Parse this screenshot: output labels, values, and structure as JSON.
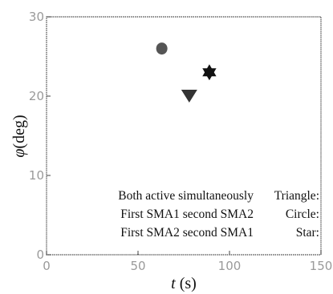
{
  "chart_data": {
    "type": "scatter",
    "xlabel": {
      "symbol": "t",
      "unit": " (s)"
    },
    "ylabel": {
      "symbol": "φ",
      "unit": "(deg)"
    },
    "xlim": [
      0,
      150
    ],
    "ylim": [
      0,
      30
    ],
    "xticks": [
      "0",
      "50",
      "100",
      "150"
    ],
    "yticks": [
      "0",
      "10",
      "20",
      "30"
    ],
    "grid": false,
    "legend_position": "bottom-right",
    "points": [
      {
        "name": "circle",
        "marker": "circle",
        "x": 63,
        "y": 26,
        "color": "#555555"
      },
      {
        "name": "triangle",
        "marker": "triangle-down",
        "x": 78,
        "y": 20,
        "color": "#333333"
      },
      {
        "name": "star",
        "marker": "star",
        "x": 89,
        "y": 23,
        "color": "#111111"
      }
    ],
    "legend": [
      {
        "description": "Both active simultaneously",
        "marker_label": "Triangle:"
      },
      {
        "description": "First SMA1 second SMA2",
        "marker_label": "Circle:"
      },
      {
        "description": "First SMA2 second SMA1",
        "marker_label": "Star:"
      }
    ]
  }
}
